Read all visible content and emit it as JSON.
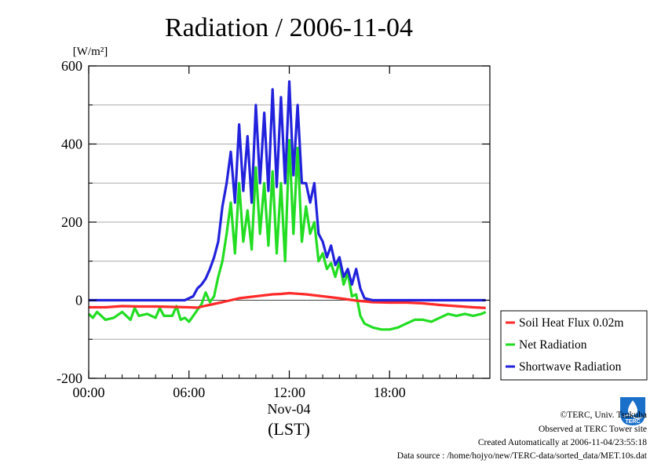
{
  "chart_data": {
    "type": "line",
    "title": "Radiation / 2006-11-04",
    "ylabel": "[W/m²]",
    "xlabel": "Nov-04",
    "xlabel2": "(LST)",
    "ylim": [
      -200,
      600
    ],
    "xlim": [
      0,
      24
    ],
    "yticks": [
      -200,
      0,
      200,
      400,
      600
    ],
    "ytick_labels": [
      "-200",
      "0",
      "200",
      "400",
      "600"
    ],
    "xticks": [
      0,
      6,
      12,
      18
    ],
    "xtick_labels": [
      "00:00",
      "06:00",
      "12:00",
      "18:00"
    ],
    "grid": true,
    "legend_position": "right-bottom-outside",
    "series": [
      {
        "name": "Soil Heat Flux 0.02m",
        "color": "#ff2a2a",
        "x": [
          0,
          1,
          2,
          3,
          4,
          5,
          6,
          6.5,
          7,
          8,
          9,
          10,
          11,
          11.5,
          12,
          13,
          14,
          15,
          16,
          17,
          18,
          19,
          20,
          21,
          22,
          23,
          23.75
        ],
        "y": [
          -18,
          -18,
          -15,
          -16,
          -16,
          -17,
          -18,
          -19,
          -14,
          -5,
          5,
          10,
          15,
          16,
          18,
          15,
          10,
          5,
          -1,
          -5,
          -6,
          -6,
          -8,
          -12,
          -15,
          -18,
          -20
        ]
      },
      {
        "name": "Net Radiation",
        "color": "#22dd22",
        "x": [
          0,
          0.25,
          0.5,
          0.75,
          1,
          1.5,
          2,
          2.5,
          2.75,
          3,
          3.5,
          4,
          4.25,
          4.5,
          5,
          5.25,
          5.5,
          5.75,
          6,
          6.25,
          6.5,
          6.75,
          7,
          7.25,
          7.5,
          7.75,
          8,
          8.25,
          8.5,
          8.75,
          9,
          9.25,
          9.5,
          9.75,
          10,
          10.25,
          10.5,
          10.75,
          11,
          11.25,
          11.5,
          11.75,
          12,
          12.25,
          12.5,
          12.75,
          13,
          13.25,
          13.5,
          13.75,
          14,
          14.25,
          14.5,
          14.75,
          15,
          15.25,
          15.5,
          15.75,
          16,
          16.25,
          16.5,
          17,
          17.5,
          18,
          18.5,
          19,
          19.5,
          20,
          20.5,
          21,
          21.5,
          22,
          22.5,
          23,
          23.5,
          23.75
        ],
        "y": [
          -35,
          -45,
          -30,
          -40,
          -50,
          -45,
          -30,
          -50,
          -20,
          -40,
          -35,
          -45,
          -20,
          -40,
          -40,
          -15,
          -50,
          -45,
          -55,
          -40,
          -25,
          -10,
          20,
          -5,
          10,
          60,
          100,
          170,
          250,
          120,
          300,
          150,
          230,
          130,
          340,
          170,
          300,
          140,
          330,
          120,
          300,
          100,
          410,
          170,
          390,
          150,
          240,
          170,
          200,
          100,
          120,
          80,
          95,
          60,
          100,
          40,
          70,
          10,
          15,
          -40,
          -60,
          -70,
          -75,
          -75,
          -70,
          -60,
          -50,
          -50,
          -55,
          -45,
          -35,
          -40,
          -35,
          -40,
          -35,
          -30
        ]
      },
      {
        "name": "Shortwave Radiation",
        "color": "#2222dd",
        "x": [
          0,
          1,
          2,
          3,
          4,
          5,
          5.75,
          6,
          6.25,
          6.5,
          6.75,
          7,
          7.25,
          7.5,
          7.75,
          8,
          8.25,
          8.5,
          8.75,
          9,
          9.25,
          9.5,
          9.75,
          10,
          10.25,
          10.5,
          10.75,
          11,
          11.25,
          11.5,
          11.75,
          12,
          12.25,
          12.5,
          12.75,
          13,
          13.25,
          13.5,
          13.75,
          14,
          14.25,
          14.5,
          14.75,
          15,
          15.25,
          15.5,
          15.75,
          16,
          16.25,
          16.5,
          17,
          18,
          19,
          20,
          21,
          22,
          23,
          23.75
        ],
        "y": [
          0,
          0,
          0,
          0,
          0,
          0,
          0,
          5,
          10,
          30,
          40,
          55,
          80,
          110,
          150,
          240,
          300,
          380,
          250,
          450,
          280,
          420,
          250,
          500,
          300,
          480,
          280,
          540,
          290,
          520,
          300,
          560,
          320,
          500,
          300,
          300,
          250,
          300,
          170,
          150,
          110,
          140,
          90,
          110,
          60,
          80,
          40,
          80,
          30,
          5,
          0,
          0,
          0,
          0,
          0,
          0,
          0,
          0
        ]
      }
    ]
  },
  "footer": {
    "copyright": "©TERC, Univ. Tsukuba",
    "observed": "Observed at TERC Tower site",
    "created": "Created Automatically at 2006-11-04/23:55:18",
    "source": "Data source : /home/hojyo/new/TERC-data/sorted_data/MET.10s.dat",
    "logo_text": "TERC"
  }
}
